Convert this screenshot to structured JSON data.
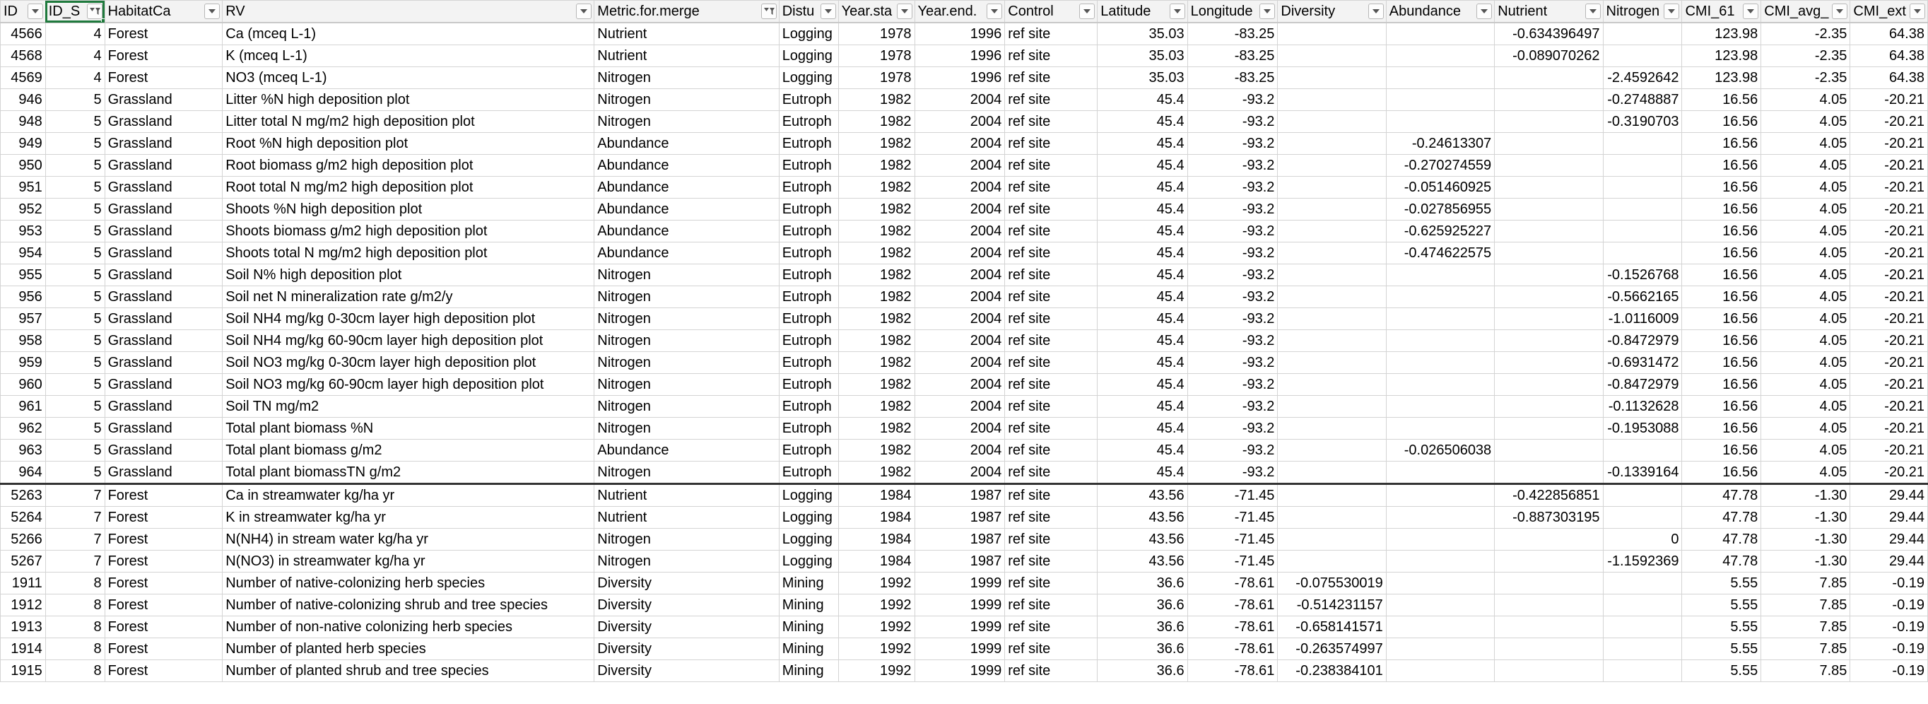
{
  "columns": [
    {
      "key": "id",
      "label": "ID",
      "align": "right",
      "filter_applied": false
    },
    {
      "key": "id_s",
      "label": "ID_S",
      "align": "right",
      "filter_applied": true,
      "selected": true
    },
    {
      "key": "habitat",
      "label": "HabitatCa",
      "align": "left",
      "filter_applied": false
    },
    {
      "key": "rv",
      "label": "RV",
      "align": "left",
      "filter_applied": false
    },
    {
      "key": "metric",
      "label": "Metric.for.merge",
      "align": "left",
      "filter_applied": true
    },
    {
      "key": "disturbance",
      "label": "Distu",
      "align": "left",
      "filter_applied": false
    },
    {
      "key": "year_start",
      "label": "Year.sta",
      "align": "right",
      "filter_applied": false
    },
    {
      "key": "year_end",
      "label": "Year.end.",
      "align": "right",
      "filter_applied": false
    },
    {
      "key": "control",
      "label": "Control",
      "align": "left",
      "filter_applied": false
    },
    {
      "key": "latitude",
      "label": "Latitude",
      "align": "right",
      "filter_applied": false
    },
    {
      "key": "longitude",
      "label": "Longitude",
      "align": "right",
      "filter_applied": false
    },
    {
      "key": "diversity",
      "label": "Diversity",
      "align": "right",
      "filter_applied": false
    },
    {
      "key": "abundance",
      "label": "Abundance",
      "align": "right",
      "filter_applied": false
    },
    {
      "key": "nutrient",
      "label": "Nutrient",
      "align": "right",
      "filter_applied": false
    },
    {
      "key": "nitrogen",
      "label": "Nitrogen",
      "align": "right",
      "filter_applied": false
    },
    {
      "key": "cmi_61",
      "label": "CMI_61",
      "align": "right",
      "filter_applied": false
    },
    {
      "key": "cmi_avg",
      "label": "CMI_avg_",
      "align": "right",
      "filter_applied": false
    },
    {
      "key": "cmi_ext",
      "label": "CMI_ext",
      "align": "right",
      "filter_applied": false
    }
  ],
  "rows": [
    [
      "4566",
      "4",
      "Forest",
      "Ca (mceq L-1)",
      "Nutrient",
      "Logging",
      "1978",
      "1996",
      "ref site",
      "35.03",
      "-83.25",
      "",
      "",
      "-0.634396497",
      "",
      "123.98",
      "-2.35",
      "64.38"
    ],
    [
      "4568",
      "4",
      "Forest",
      "K (mceq L-1)",
      "Nutrient",
      "Logging",
      "1978",
      "1996",
      "ref site",
      "35.03",
      "-83.25",
      "",
      "",
      "-0.089070262",
      "",
      "123.98",
      "-2.35",
      "64.38"
    ],
    [
      "4569",
      "4",
      "Forest",
      "NO3 (mceq L-1)",
      "Nitrogen",
      "Logging",
      "1978",
      "1996",
      "ref site",
      "35.03",
      "-83.25",
      "",
      "",
      "",
      "-2.4592642",
      "123.98",
      "-2.35",
      "64.38"
    ],
    [
      "946",
      "5",
      "Grassland",
      "Litter %N high deposition plot",
      "Nitrogen",
      "Eutroph",
      "1982",
      "2004",
      "ref site",
      "45.4",
      "-93.2",
      "",
      "",
      "",
      "-0.2748887",
      "16.56",
      "4.05",
      "-20.21"
    ],
    [
      "948",
      "5",
      "Grassland",
      "Litter total N mg/m2 high deposition plot",
      "Nitrogen",
      "Eutroph",
      "1982",
      "2004",
      "ref site",
      "45.4",
      "-93.2",
      "",
      "",
      "",
      "-0.3190703",
      "16.56",
      "4.05",
      "-20.21"
    ],
    [
      "949",
      "5",
      "Grassland",
      "Root %N high deposition plot",
      "Abundance",
      "Eutroph",
      "1982",
      "2004",
      "ref site",
      "45.4",
      "-93.2",
      "",
      "-0.24613307",
      "",
      "",
      "16.56",
      "4.05",
      "-20.21"
    ],
    [
      "950",
      "5",
      "Grassland",
      "Root biomass g/m2 high deposition plot",
      "Abundance",
      "Eutroph",
      "1982",
      "2004",
      "ref site",
      "45.4",
      "-93.2",
      "",
      "-0.270274559",
      "",
      "",
      "16.56",
      "4.05",
      "-20.21"
    ],
    [
      "951",
      "5",
      "Grassland",
      "Root total N mg/m2 high deposition plot",
      "Abundance",
      "Eutroph",
      "1982",
      "2004",
      "ref site",
      "45.4",
      "-93.2",
      "",
      "-0.051460925",
      "",
      "",
      "16.56",
      "4.05",
      "-20.21"
    ],
    [
      "952",
      "5",
      "Grassland",
      "Shoots %N high deposition plot",
      "Abundance",
      "Eutroph",
      "1982",
      "2004",
      "ref site",
      "45.4",
      "-93.2",
      "",
      "-0.027856955",
      "",
      "",
      "16.56",
      "4.05",
      "-20.21"
    ],
    [
      "953",
      "5",
      "Grassland",
      "Shoots biomass g/m2 high deposition plot",
      "Abundance",
      "Eutroph",
      "1982",
      "2004",
      "ref site",
      "45.4",
      "-93.2",
      "",
      "-0.625925227",
      "",
      "",
      "16.56",
      "4.05",
      "-20.21"
    ],
    [
      "954",
      "5",
      "Grassland",
      "Shoots total N mg/m2 high deposition plot",
      "Abundance",
      "Eutroph",
      "1982",
      "2004",
      "ref site",
      "45.4",
      "-93.2",
      "",
      "-0.474622575",
      "",
      "",
      "16.56",
      "4.05",
      "-20.21"
    ],
    [
      "955",
      "5",
      "Grassland",
      "Soil N% high deposition plot",
      "Nitrogen",
      "Eutroph",
      "1982",
      "2004",
      "ref site",
      "45.4",
      "-93.2",
      "",
      "",
      "",
      "-0.1526768",
      "16.56",
      "4.05",
      "-20.21"
    ],
    [
      "956",
      "5",
      "Grassland",
      "Soil net N mineralization rate g/m2/y",
      "Nitrogen",
      "Eutroph",
      "1982",
      "2004",
      "ref site",
      "45.4",
      "-93.2",
      "",
      "",
      "",
      "-0.5662165",
      "16.56",
      "4.05",
      "-20.21"
    ],
    [
      "957",
      "5",
      "Grassland",
      "Soil NH4 mg/kg 0-30cm layer high deposition plot",
      "Nitrogen",
      "Eutroph",
      "1982",
      "2004",
      "ref site",
      "45.4",
      "-93.2",
      "",
      "",
      "",
      "-1.0116009",
      "16.56",
      "4.05",
      "-20.21"
    ],
    [
      "958",
      "5",
      "Grassland",
      "Soil NH4 mg/kg 60-90cm layer high deposition plot",
      "Nitrogen",
      "Eutroph",
      "1982",
      "2004",
      "ref site",
      "45.4",
      "-93.2",
      "",
      "",
      "",
      "-0.8472979",
      "16.56",
      "4.05",
      "-20.21"
    ],
    [
      "959",
      "5",
      "Grassland",
      "Soil NO3 mg/kg 0-30cm layer high deposition plot",
      "Nitrogen",
      "Eutroph",
      "1982",
      "2004",
      "ref site",
      "45.4",
      "-93.2",
      "",
      "",
      "",
      "-0.6931472",
      "16.56",
      "4.05",
      "-20.21"
    ],
    [
      "960",
      "5",
      "Grassland",
      "Soil NO3 mg/kg 60-90cm layer high deposition plot",
      "Nitrogen",
      "Eutroph",
      "1982",
      "2004",
      "ref site",
      "45.4",
      "-93.2",
      "",
      "",
      "",
      "-0.8472979",
      "16.56",
      "4.05",
      "-20.21"
    ],
    [
      "961",
      "5",
      "Grassland",
      "Soil TN mg/m2",
      "Nitrogen",
      "Eutroph",
      "1982",
      "2004",
      "ref site",
      "45.4",
      "-93.2",
      "",
      "",
      "",
      "-0.1132628",
      "16.56",
      "4.05",
      "-20.21"
    ],
    [
      "962",
      "5",
      "Grassland",
      "Total plant biomass %N",
      "Nitrogen",
      "Eutroph",
      "1982",
      "2004",
      "ref site",
      "45.4",
      "-93.2",
      "",
      "",
      "",
      "-0.1953088",
      "16.56",
      "4.05",
      "-20.21"
    ],
    [
      "963",
      "5",
      "Grassland",
      "Total plant biomass g/m2",
      "Abundance",
      "Eutroph",
      "1982",
      "2004",
      "ref site",
      "45.4",
      "-93.2",
      "",
      "-0.026506038",
      "",
      "",
      "16.56",
      "4.05",
      "-20.21"
    ],
    [
      "964",
      "5",
      "Grassland",
      "Total plant biomassTN g/m2",
      "Nitrogen",
      "Eutroph",
      "1982",
      "2004",
      "ref site",
      "45.4",
      "-93.2",
      "",
      "",
      "",
      "-0.1339164",
      "16.56",
      "4.05",
      "-20.21"
    ],
    [
      "5263",
      "7",
      "Forest",
      "Ca in streamwater kg/ha yr",
      "Nutrient",
      "Logging",
      "1984",
      "1987",
      "ref site",
      "43.56",
      "-71.45",
      "",
      "",
      "-0.422856851",
      "",
      "47.78",
      "-1.30",
      "29.44"
    ],
    [
      "5264",
      "7",
      "Forest",
      "K in streamwater kg/ha yr",
      "Nutrient",
      "Logging",
      "1984",
      "1987",
      "ref site",
      "43.56",
      "-71.45",
      "",
      "",
      "-0.887303195",
      "",
      "47.78",
      "-1.30",
      "29.44"
    ],
    [
      "5266",
      "7",
      "Forest",
      "N(NH4) in stream water kg/ha yr",
      "Nitrogen",
      "Logging",
      "1984",
      "1987",
      "ref site",
      "43.56",
      "-71.45",
      "",
      "",
      "",
      "0",
      "47.78",
      "-1.30",
      "29.44"
    ],
    [
      "5267",
      "7",
      "Forest",
      "N(NO3) in streamwater kg/ha yr",
      "Nitrogen",
      "Logging",
      "1984",
      "1987",
      "ref site",
      "43.56",
      "-71.45",
      "",
      "",
      "",
      "-1.1592369",
      "47.78",
      "-1.30",
      "29.44"
    ],
    [
      "1911",
      "8",
      "Forest",
      "Number of native-colonizing herb species",
      "Diversity",
      "Mining",
      "1992",
      "1999",
      "ref site",
      "36.6",
      "-78.61",
      "-0.075530019",
      "",
      "",
      "",
      "5.55",
      "7.85",
      "-0.19"
    ],
    [
      "1912",
      "8",
      "Forest",
      "Number of native-colonizing shrub and tree species",
      "Diversity",
      "Mining",
      "1992",
      "1999",
      "ref site",
      "36.6",
      "-78.61",
      "-0.514231157",
      "",
      "",
      "",
      "5.55",
      "7.85",
      "-0.19"
    ],
    [
      "1913",
      "8",
      "Forest",
      "Number of non-native colonizing herb species",
      "Diversity",
      "Mining",
      "1992",
      "1999",
      "ref site",
      "36.6",
      "-78.61",
      "-0.658141571",
      "",
      "",
      "",
      "5.55",
      "7.85",
      "-0.19"
    ],
    [
      "1914",
      "8",
      "Forest",
      "Number of planted herb species",
      "Diversity",
      "Mining",
      "1992",
      "1999",
      "ref site",
      "36.6",
      "-78.61",
      "-0.263574997",
      "",
      "",
      "",
      "5.55",
      "7.85",
      "-0.19"
    ],
    [
      "1915",
      "8",
      "Forest",
      "Number of planted shrub and tree species",
      "Diversity",
      "Mining",
      "1992",
      "1999",
      "ref site",
      "36.6",
      "-78.61",
      "-0.238384101",
      "",
      "",
      "",
      "5.55",
      "7.85",
      "-0.19"
    ]
  ],
  "icons": {
    "filter": "dropdown-arrow-icon",
    "filter_applied": "funnel-icon"
  },
  "colors": {
    "selection": "#1f7a3d",
    "grid": "#d4d4d4",
    "header_bg": "#f3f3f3"
  }
}
